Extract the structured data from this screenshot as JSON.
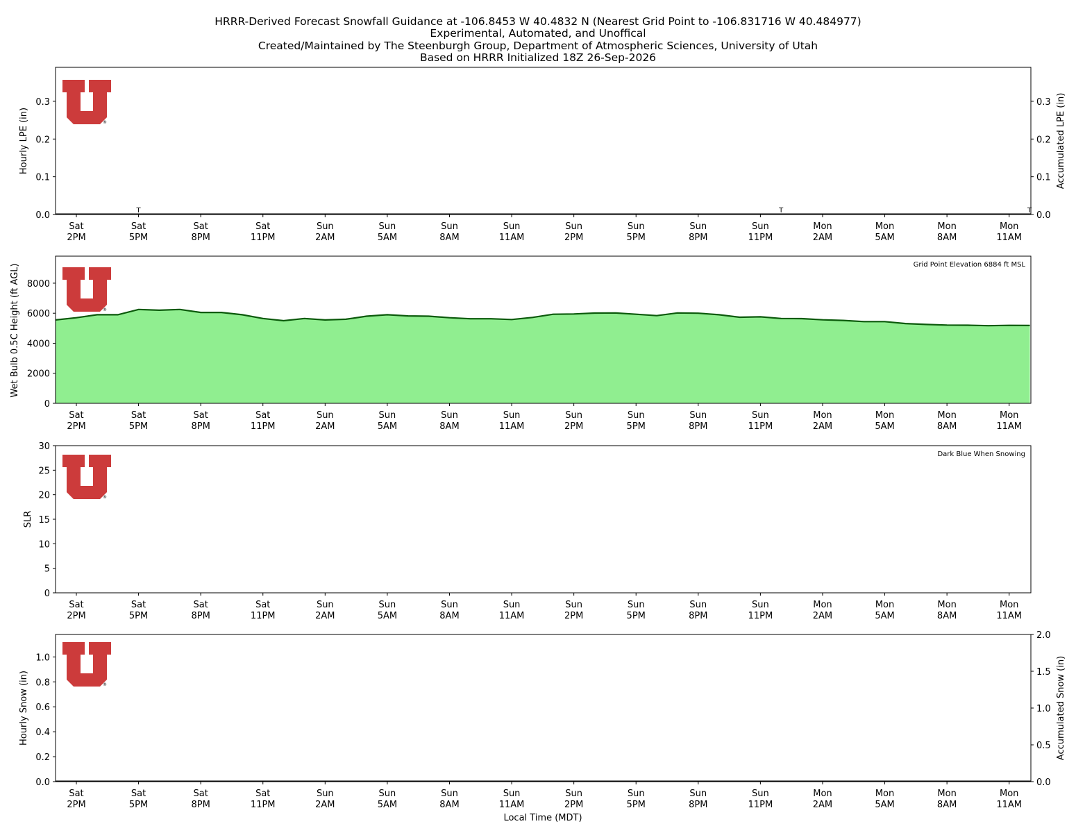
{
  "title_lines": [
    "HRRR-Derived Forecast Snowfall Guidance at -106.8453 W 40.4832 N (Nearest Grid Point to -106.831716 W 40.484977)",
    "Experimental, Automated, and Unoffical",
    "Created/Maintained by The Steenburgh Group, Department of Atmospheric Sciences, University of Utah",
    "Based on HRRR Initialized 18Z 26-Sep-2026"
  ],
  "x_tick_labels": [
    [
      "Sat",
      "2PM"
    ],
    [
      "Sat",
      "5PM"
    ],
    [
      "Sat",
      "8PM"
    ],
    [
      "Sat",
      "11PM"
    ],
    [
      "Sun",
      "2AM"
    ],
    [
      "Sun",
      "5AM"
    ],
    [
      "Sun",
      "8AM"
    ],
    [
      "Sun",
      "11AM"
    ],
    [
      "Sun",
      "2PM"
    ],
    [
      "Sun",
      "5PM"
    ],
    [
      "Sun",
      "8PM"
    ],
    [
      "Sun",
      "11PM"
    ],
    [
      "Mon",
      "2AM"
    ],
    [
      "Mon",
      "5AM"
    ],
    [
      "Mon",
      "8AM"
    ],
    [
      "Mon",
      "11AM"
    ]
  ],
  "x_label": "Local Time (MDT)",
  "logo_icon": "university-of-utah-u-logo",
  "colors": {
    "logo_red": "#CC3B3B",
    "wetbulb_fill": "#90EE90",
    "wetbulb_line": "#0B5A0B",
    "axis": "#000000"
  },
  "chart_data": [
    {
      "type": "bar",
      "name": "hourly-lpe",
      "ylabel": "Hourly LPE (in)",
      "ylabel_right": "Accumulated LPE (in)",
      "ylim": [
        0,
        0.39
      ],
      "yticks": [
        "0.0",
        "0.1",
        "0.2",
        "0.3"
      ],
      "yticks_values": [
        0.0,
        0.1,
        0.2,
        0.3
      ],
      "yticks_right": [
        "0.0",
        "0.1",
        "0.2",
        "0.3"
      ],
      "trace_markers": [
        {
          "hour": 3,
          "label": "T"
        },
        {
          "hour": 34,
          "label": "T"
        },
        {
          "hour": 46,
          "label": "T"
        }
      ],
      "values": "all ~0"
    },
    {
      "type": "area",
      "name": "wetbulb-height",
      "ylabel": "Wet Bulb 0.5C Height (ft AGL)",
      "ylim": [
        0,
        9800
      ],
      "yticks": [
        "0",
        "2000",
        "4000",
        "6000",
        "8000"
      ],
      "yticks_values": [
        0,
        2000,
        4000,
        6000,
        8000
      ],
      "annotation": "Grid Point Elevation 6884 ft MSL",
      "x_start_hour": -1,
      "values": [
        5550,
        5700,
        5900,
        5900,
        6250,
        6200,
        6250,
        6050,
        6050,
        5900,
        5650,
        5500,
        5650,
        5550,
        5600,
        5800,
        5900,
        5820,
        5800,
        5700,
        5630,
        5630,
        5580,
        5720,
        5930,
        5950,
        6010,
        6020,
        5930,
        5840,
        6020,
        6000,
        5900,
        5730,
        5760,
        5650,
        5640,
        5560,
        5520,
        5440,
        5440,
        5310,
        5250,
        5210,
        5200,
        5170,
        5190,
        5180
      ]
    },
    {
      "type": "scatter",
      "name": "slr",
      "ylabel": "SLR",
      "ylim": [
        0,
        30
      ],
      "yticks": [
        "0",
        "5",
        "10",
        "15",
        "20",
        "25",
        "30"
      ],
      "yticks_values": [
        0,
        5,
        10,
        15,
        20,
        25,
        30
      ],
      "annotation": "Dark Blue When Snowing",
      "values": []
    },
    {
      "type": "bar",
      "name": "hourly-snow",
      "ylabel": "Hourly Snow (in)",
      "ylabel_right": "Accumulated Snow (in)",
      "ylim": [
        0,
        1.18
      ],
      "yticks": [
        "0.0",
        "0.2",
        "0.4",
        "0.6",
        "0.8",
        "1.0"
      ],
      "yticks_values": [
        0.0,
        0.2,
        0.4,
        0.6,
        0.8,
        1.0
      ],
      "ylim_right": [
        0,
        2.0
      ],
      "yticks_right": [
        "0.0",
        "0.5",
        "1.0",
        "1.5",
        "2.0"
      ],
      "yticks_right_values": [
        0.0,
        0.5,
        1.0,
        1.5,
        2.0
      ],
      "values": "all 0"
    }
  ]
}
